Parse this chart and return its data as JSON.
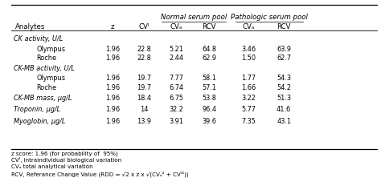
{
  "header_row1_normal": "Normal serum pool",
  "header_row1_pathologic": "Pathologic serum pool",
  "header_row2": [
    "Analytes",
    "z",
    "CVᴵ",
    "CVₐ",
    "RCV",
    "CVₐ",
    "RCV"
  ],
  "rows": [
    [
      "CK activity, U/L",
      "",
      "",
      "",
      "",
      "",
      ""
    ],
    [
      "Olympus",
      "1.96",
      "22.8",
      "5.21",
      "64.8",
      "3.46",
      "63.9"
    ],
    [
      "Roche",
      "1.96",
      "22.8",
      "2.44",
      "62.9",
      "1.50",
      "62.7"
    ],
    [
      "CK-MB activity, U/L",
      "",
      "",
      "",
      "",
      "",
      ""
    ],
    [
      "Olympus",
      "1.96",
      "19.7",
      "7.77",
      "58.1",
      "1.77",
      "54.3"
    ],
    [
      "Roche",
      "1.96",
      "19.7",
      "6.74",
      "57.1",
      "1.66",
      "54.2"
    ],
    [
      "CK-MB mass, μg/L",
      "1.96",
      "18.4",
      "6.75",
      "53.8",
      "3.22",
      "51.3"
    ],
    [
      "Troponin, μg/L",
      "1.96",
      "14",
      "32.2",
      "96.4",
      "5.77",
      "41.6"
    ],
    [
      "Myoglobin, μg/L",
      "1.96",
      "13.9",
      "3.91",
      "39.6",
      "7.35",
      "43.1"
    ]
  ],
  "footnotes": [
    "z score: 1.96 (for probability of  95%)",
    "CVᴵ, intraindividual biological variation",
    "CVₐ total analytical variation",
    "RCV, Referance Change Value (RDD = √2 x z x √(CVₐ² + CVᴵ²))"
  ],
  "category_rows": [
    0,
    3
  ],
  "italic_analyte_rows": [
    6,
    7,
    8
  ],
  "indented_rows": [
    1,
    2,
    4,
    5
  ]
}
